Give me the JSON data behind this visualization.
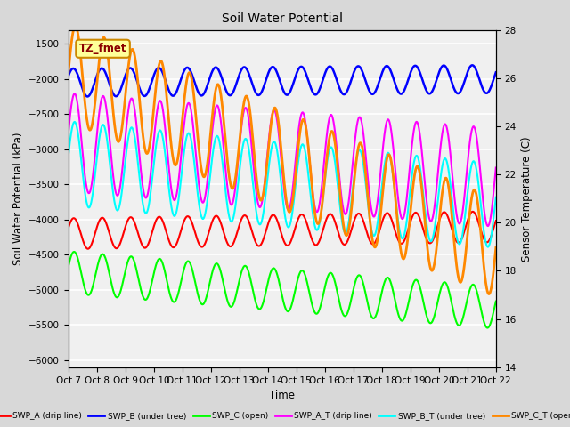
{
  "title": "Soil Water Potential",
  "ylabel_left": "Soil Water Potential (kPa)",
  "ylabel_right": "Sensor Temperature (C)",
  "xlabel": "Time",
  "annotation_text": "TZ_fmet",
  "annotation_bg": "#FFFF99",
  "annotation_border": "#CC8800",
  "x_tick_labels": [
    "Oct 7",
    "Oct 8",
    "Oct 9",
    "Oct 10",
    "Oct 11",
    "Oct 12",
    "Oct 13",
    "Oct 14",
    "Oct 15",
    "Oct 16",
    "Oct 17",
    "Oct 18",
    "Oct 19",
    "Oct 20",
    "Oct 21",
    "Oct 22"
  ],
  "ylim_left": [
    -6100,
    -1300
  ],
  "ylim_right": [
    14,
    28
  ],
  "yticks_left": [
    -6000,
    -5500,
    -5000,
    -4500,
    -4000,
    -3500,
    -3000,
    -2500,
    -2000,
    -1500
  ],
  "yticks_right": [
    14,
    16,
    18,
    20,
    22,
    24,
    26,
    28
  ],
  "bg_color": "#D8D8D8",
  "plot_bg": "#F0F0F0",
  "grid_color": "#FFFFFF",
  "series": [
    {
      "name": "SWP_B (under tree)",
      "color": "#0000FF",
      "lw": 1.8,
      "base": -2050,
      "amplitude": 200,
      "trend": 50,
      "phase": 0.5
    },
    {
      "name": "SWP_C (open)",
      "color": "#00FF00",
      "lw": 1.5,
      "base": -4750,
      "amplitude": 300,
      "trend": -500,
      "phase": 0.3
    },
    {
      "name": "SWP_A (drip line)",
      "color": "#FF0000",
      "lw": 1.5,
      "base": -4200,
      "amplitude": 220,
      "trend": 100,
      "phase": 0.4
    },
    {
      "name": "SWP_A_T (drip line)",
      "color": "#FF00FF",
      "lw": 1.5,
      "base": -2900,
      "amplitude": 700,
      "trend": -500,
      "phase": 0.2
    },
    {
      "name": "SWP_B_T (under tree)",
      "color": "#00FFFF",
      "lw": 1.5,
      "base": -3200,
      "amplitude": 600,
      "trend": -600,
      "phase": 0.2
    },
    {
      "name": "SWP_C_T (open)",
      "color": "#FF8800",
      "lw": 2.0,
      "base": -1900,
      "amplitude": 700,
      "trend": -2500,
      "phase": 0.0
    }
  ],
  "legend_entries": [
    {
      "label": "SWP_A (drip line)",
      "color": "#FF0000"
    },
    {
      "label": "SWP_B (under tree)",
      "color": "#0000FF"
    },
    {
      "label": "SWP_C (open)",
      "color": "#00FF00"
    },
    {
      "label": "SWP_A_T (drip line)",
      "color": "#FF00FF"
    },
    {
      "label": "SWP_B_T (under tree)",
      "color": "#00FFFF"
    },
    {
      "label": "SWP_C_T (open)",
      "color": "#FF8800"
    }
  ]
}
